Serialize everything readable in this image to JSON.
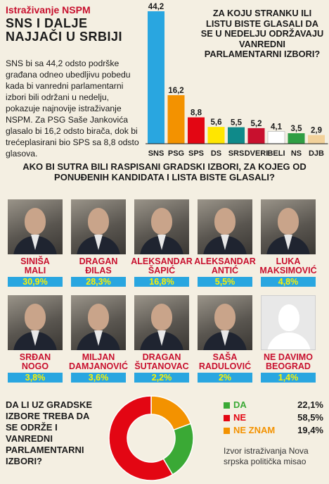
{
  "header": {
    "label": "Istraživanje NSPM",
    "headline_line1": "SNS I DALJE",
    "headline_line2": "NAJJAČI U SRBIJI"
  },
  "body_text": "SNS bi sa 44,2 odsto podrške građana odneo ubedljivu pobedu kada bi vanredni parlamentarni izbori bili održani u nedelju, pokazuje najnovije istraživanje NSPM. Za PSG Saše Jankovića glasalo bi 16,2 odsto birača, dok bi trećeplasirani bio SPS sa 8,8 odsto glasova.",
  "mid_question": "AKO BI SUTRA BILI RASPISANI GRADSKI IZBORI, ZA KOJEG OD PONUĐENIH KANDIDATA I LISTA BISTE GLASALI?",
  "candidates": [
    {
      "name1": "SINIŠA",
      "name2": "MALI",
      "pct": "30,9%"
    },
    {
      "name1": "DRAGAN",
      "name2": "ĐILAS",
      "pct": "28,3%"
    },
    {
      "name1": "ALEKSANDAR",
      "name2": "ŠAPIĆ",
      "pct": "16,8%"
    },
    {
      "name1": "ALEKSANDAR",
      "name2": "ANTIĆ",
      "pct": "5,5%"
    },
    {
      "name1": "LUKA",
      "name2": "MAKSIMOVIĆ",
      "pct": "4,8%"
    },
    {
      "name1": "SRĐAN",
      "name2": "NOGO",
      "pct": "3,8%"
    },
    {
      "name1": "MILJAN",
      "name2": "DAMJANOVIĆ",
      "pct": "3,6%"
    },
    {
      "name1": "DRAGAN",
      "name2": "ŠUTANOVAC",
      "pct": "2,2%"
    },
    {
      "name1": "SAŠA",
      "name2": "RADULOVIĆ",
      "pct": "2%"
    },
    {
      "name1": "NE DAVIMO",
      "name2": "BEOGRAD",
      "pct": "1,4%"
    }
  ],
  "bottom_question": "DA LI UZ GRADSKE IZBORE TREBA DA SE ODRŽE I VANREDNI PARLAMENTARNI IZBORI?",
  "source": "Izvor istraživanja Nova srpska politička misao",
  "chart_data": [
    {
      "type": "bar",
      "title": "ZA KOJU STRANKU ILI LISTU BISTE GLASALI DA SE U NEDELJU ODRŽAVAJU VANREDNI PARLAMENTARNI IZBORI?",
      "categories": [
        "SNS",
        "PSG",
        "SPS",
        "DS",
        "SRS",
        "DVERI",
        "BELI",
        "NS",
        "DJB"
      ],
      "values": [
        44.2,
        16.2,
        8.8,
        5.6,
        5.5,
        5.2,
        4.1,
        3.5,
        2.9
      ],
      "value_labels": [
        "44,2",
        "16,2",
        "8,8",
        "5,6",
        "5,5",
        "5,2",
        "4,1",
        "3,5",
        "2,9"
      ],
      "colors": [
        "#29a6e0",
        "#f39200",
        "#e30613",
        "#ffe600",
        "#0f8a8a",
        "#c8102e",
        "#ffffff",
        "#2f9e44",
        "#f2d19a"
      ],
      "ylim": [
        0,
        44.2
      ],
      "grid": false
    },
    {
      "type": "pie",
      "categories": [
        "DA",
        "NE",
        "NE ZNAM"
      ],
      "values": [
        22.1,
        58.5,
        19.4
      ],
      "value_labels": [
        "22,1%",
        "58,5%",
        "19,4%"
      ],
      "colors": [
        "#3aa935",
        "#e30613",
        "#f39200"
      ]
    }
  ]
}
